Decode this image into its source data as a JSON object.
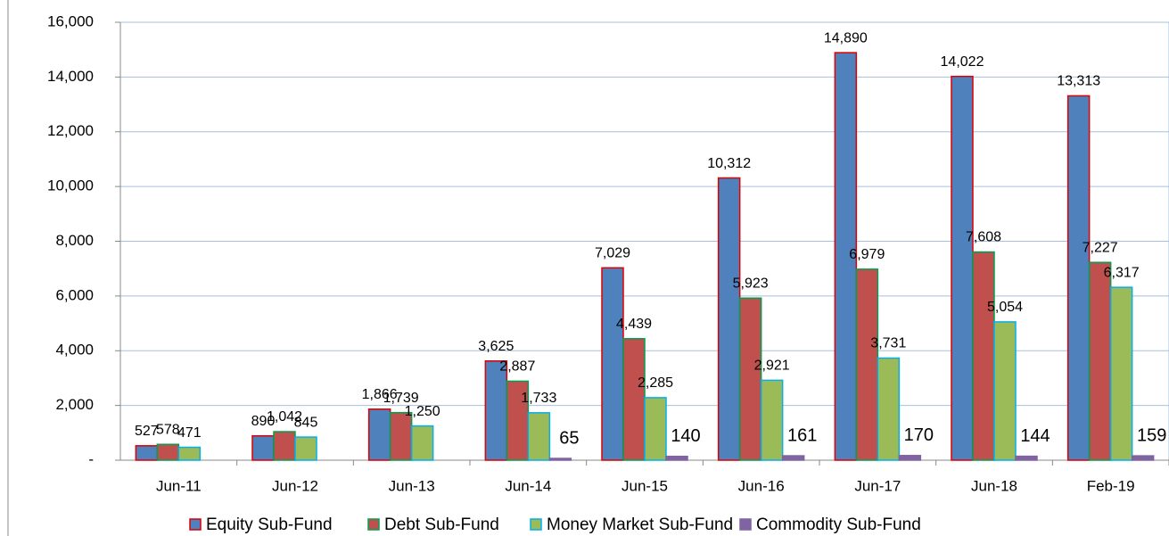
{
  "chart_data": {
    "type": "bar",
    "categories": [
      "Jun-11",
      "Jun-12",
      "Jun-13",
      "Jun-14",
      "Jun-15",
      "Jun-16",
      "Jun-17",
      "Jun-18",
      "Feb-19"
    ],
    "series": [
      {
        "name": "Equity Sub-Fund",
        "color": "#4f81bd",
        "stroke": "#e00000",
        "values": [
          527,
          890,
          1866,
          3625,
          7029,
          10312,
          14890,
          14022,
          13313
        ],
        "value_labels": [
          "527",
          "890",
          "1,866",
          "3,625",
          "7,029",
          "10,312",
          "14,890",
          "14,022",
          "13,313"
        ]
      },
      {
        "name": "Debt Sub-Fund",
        "color": "#c0504d",
        "stroke": "#00a050",
        "values": [
          578,
          1042,
          1739,
          2887,
          4439,
          5923,
          6979,
          7608,
          7227
        ],
        "value_labels": [
          "578",
          "1,042",
          "1,739",
          "2,887",
          "4,439",
          "5,923",
          "6,979",
          "7,608",
          "7,227"
        ]
      },
      {
        "name": "Money Market Sub-Fund",
        "color": "#9bbb59",
        "stroke": "#00b0f0",
        "values": [
          471,
          845,
          1250,
          1733,
          2285,
          2921,
          3731,
          5054,
          6317
        ],
        "value_labels": [
          "471",
          "845",
          "1,250",
          "1,733",
          "2,285",
          "2,921",
          "3,731",
          "5,054",
          "6,317"
        ]
      },
      {
        "name": "Commodity Sub-Fund",
        "color": "#8064a2",
        "stroke": "#8064a2",
        "values": [
          null,
          null,
          null,
          65,
          140,
          161,
          170,
          144,
          159
        ],
        "value_labels": [
          null,
          null,
          null,
          "65",
          "140",
          "161",
          "170",
          "144",
          "159"
        ]
      }
    ],
    "ylim": [
      0,
      16000
    ],
    "yticks": [
      {
        "value": 0,
        "label": "-"
      },
      {
        "value": 2000,
        "label": "2,000"
      },
      {
        "value": 4000,
        "label": "4,000"
      },
      {
        "value": 6000,
        "label": "6,000"
      },
      {
        "value": 8000,
        "label": "8,000"
      },
      {
        "value": 10000,
        "label": "10,000"
      },
      {
        "value": 12000,
        "label": "12,000"
      },
      {
        "value": 14000,
        "label": "14,000"
      },
      {
        "value": 16000,
        "label": "16,000"
      }
    ],
    "grid": true,
    "legend": "bottom"
  }
}
